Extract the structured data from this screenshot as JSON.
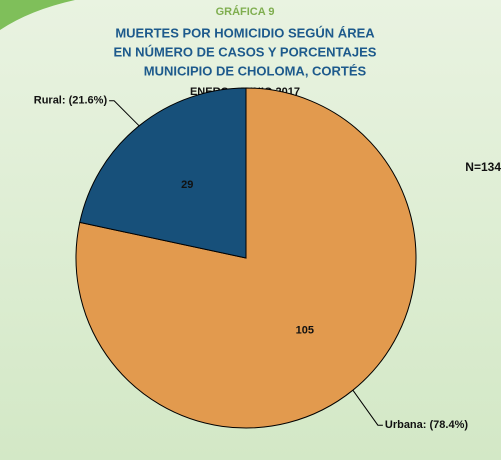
{
  "chart_data": {
    "type": "pie",
    "supertitle": "GRÁFICA 9",
    "title": [
      "MUERTES POR HOMICIDIO SEGÚN ÁREA",
      "EN NÚMERO DE CASOS Y PORCENTAJES",
      "MUNICIPIO DE CHOLOMA, CORTÉS"
    ],
    "subtitle": "ENERO - JUNIO 2017",
    "annotation": "N=134",
    "categories": [
      "Urbana: (78.4%)",
      "Rural: (21.6%)"
    ],
    "values": [
      105,
      29
    ],
    "colors": [
      "#e29a4e",
      "#17507a"
    ]
  }
}
